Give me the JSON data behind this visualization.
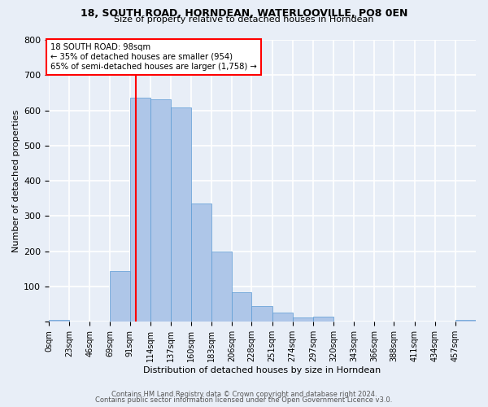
{
  "title1": "18, SOUTH ROAD, HORNDEAN, WATERLOOVILLE, PO8 0EN",
  "title2": "Size of property relative to detached houses in Horndean",
  "xlabel": "Distribution of detached houses by size in Horndean",
  "ylabel": "Number of detached properties",
  "bin_labels": [
    "0sqm",
    "23sqm",
    "46sqm",
    "69sqm",
    "91sqm",
    "114sqm",
    "137sqm",
    "160sqm",
    "183sqm",
    "206sqm",
    "228sqm",
    "251sqm",
    "274sqm",
    "297sqm",
    "320sqm",
    "343sqm",
    "366sqm",
    "388sqm",
    "411sqm",
    "434sqm",
    "457sqm"
  ],
  "bin_edges": [
    0,
    23,
    46,
    69,
    91,
    114,
    137,
    160,
    183,
    206,
    228,
    251,
    274,
    297,
    320,
    343,
    366,
    388,
    411,
    434,
    457
  ],
  "bar_heights": [
    5,
    0,
    0,
    143,
    637,
    632,
    608,
    335,
    200,
    85,
    44,
    27,
    12,
    14,
    0,
    0,
    0,
    0,
    0,
    0,
    5
  ],
  "bar_color": "#aec6e8",
  "bar_edge_color": "#5b9bd5",
  "red_line_x": 98,
  "annotation_line1": "18 SOUTH ROAD: 98sqm",
  "annotation_line2": "← 35% of detached houses are smaller (954)",
  "annotation_line3": "65% of semi-detached houses are larger (1,758) →",
  "annotation_box_color": "white",
  "annotation_box_edge": "red",
  "footer1": "Contains HM Land Registry data © Crown copyright and database right 2024.",
  "footer2": "Contains public sector information licensed under the Open Government Licence v3.0.",
  "ylim": [
    0,
    800
  ],
  "yticks": [
    0,
    100,
    200,
    300,
    400,
    500,
    600,
    700,
    800
  ],
  "bg_color": "#e8eef7",
  "plot_bg_color": "#e8eef7",
  "grid_color": "white"
}
